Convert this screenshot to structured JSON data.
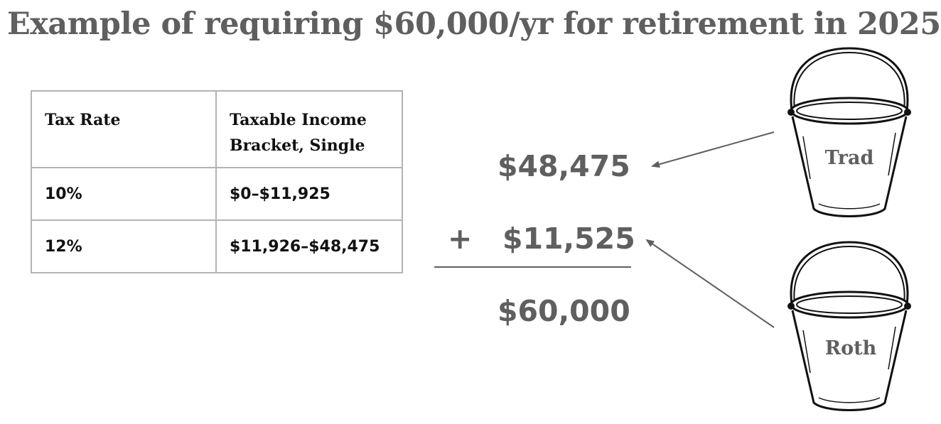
{
  "title": "Example of requiring $60,000/yr for retirement in 2025",
  "table": {
    "headers": [
      "Tax Rate",
      "Taxable Income\nBracket, Single"
    ],
    "rows": [
      [
        "10%",
        "$0–$11,925"
      ],
      [
        "12%",
        "$11,926–$48,475"
      ]
    ]
  },
  "calculation": {
    "trad_amount": "$48,475",
    "plus_sign": "+",
    "roth_amount": "$11,525",
    "total": "$60,000"
  },
  "buckets": {
    "trad_label": "Trad",
    "roth_label": "Roth"
  },
  "colors": {
    "text_gray": "#5f5f5f",
    "table_text": "#111111",
    "table_border": "#b3b3b3"
  }
}
